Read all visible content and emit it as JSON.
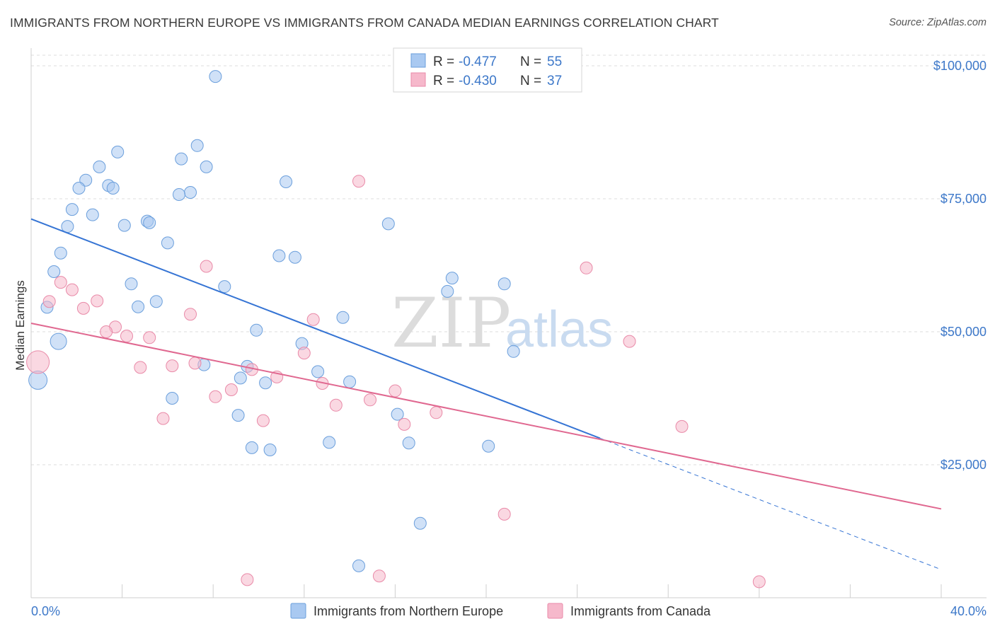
{
  "title": "IMMIGRANTS FROM NORTHERN EUROPE VS IMMIGRANTS FROM CANADA MEDIAN EARNINGS CORRELATION CHART",
  "source": "Source: ZipAtlas.com",
  "watermark": {
    "zip": "ZIP",
    "atlas": "atlas"
  },
  "legend": {
    "r_label": "R =",
    "n_label": "N =",
    "rows": [
      {
        "r": "-0.477",
        "n": "55",
        "color": "#a9c9f1"
      },
      {
        "r": "-0.430",
        "n": "37",
        "color": "#f6b8cb"
      }
    ]
  },
  "chart_data": {
    "type": "scatter",
    "title": "IMMIGRANTS FROM NORTHERN EUROPE VS IMMIGRANTS FROM CANADA MEDIAN EARNINGS CORRELATION CHART",
    "xlabel": "",
    "ylabel": "Median Earnings",
    "xlim": [
      0,
      40
    ],
    "ylim": [
      0,
      102000
    ],
    "x_tick_labels": [
      "0.0%",
      "40.0%"
    ],
    "y_ticks": [
      25000,
      50000,
      75000,
      100000
    ],
    "y_tick_labels": [
      "$25,000",
      "$50,000",
      "$75,000",
      "$100,000"
    ],
    "grid": true,
    "legend_position": "top-center",
    "series": [
      {
        "name": "Immigrants from Northern Europe",
        "color": "#a9c9f1",
        "stroke": "#6b9fdc",
        "trend_color": "#3574d4",
        "trend": {
          "x0": 0,
          "y0": 71200,
          "x1": 25,
          "y1": 30000,
          "x_dash_end": 40,
          "y_dash_end": 5300
        },
        "points": [
          [
            8.1,
            98000
          ],
          [
            3.8,
            83800
          ],
          [
            7.3,
            85000
          ],
          [
            6.6,
            82500
          ],
          [
            7.7,
            81000
          ],
          [
            3.0,
            81000
          ],
          [
            2.4,
            78500
          ],
          [
            11.2,
            78200
          ],
          [
            3.4,
            77500
          ],
          [
            3.6,
            77000
          ],
          [
            2.1,
            77000
          ],
          [
            7.0,
            76200
          ],
          [
            6.5,
            75800
          ],
          [
            1.8,
            73000
          ],
          [
            2.7,
            72000
          ],
          [
            4.1,
            70000
          ],
          [
            5.1,
            70800
          ],
          [
            5.2,
            70500
          ],
          [
            15.7,
            70300
          ],
          [
            1.6,
            69800
          ],
          [
            6.0,
            66700
          ],
          [
            1.3,
            64800
          ],
          [
            10.9,
            64300
          ],
          [
            11.6,
            64000
          ],
          [
            1.0,
            61300
          ],
          [
            18.5,
            60100
          ],
          [
            4.4,
            59000
          ],
          [
            20.8,
            59000
          ],
          [
            8.5,
            58500
          ],
          [
            18.3,
            57600
          ],
          [
            5.5,
            55700
          ],
          [
            0.7,
            54600
          ],
          [
            4.7,
            54700
          ],
          [
            13.7,
            52700
          ],
          [
            9.9,
            50300
          ],
          [
            1.2,
            48200
          ],
          [
            11.9,
            47800
          ],
          [
            21.2,
            46300
          ],
          [
            7.6,
            43800
          ],
          [
            9.5,
            43500
          ],
          [
            12.6,
            42500
          ],
          [
            9.2,
            41300
          ],
          [
            10.3,
            40400
          ],
          [
            14.0,
            40600
          ],
          [
            0.3,
            40900
          ],
          [
            6.2,
            37500
          ],
          [
            16.1,
            34500
          ],
          [
            9.1,
            34300
          ],
          [
            13.1,
            29200
          ],
          [
            16.6,
            29100
          ],
          [
            20.1,
            28500
          ],
          [
            9.7,
            28200
          ],
          [
            10.5,
            27800
          ],
          [
            17.1,
            14000
          ],
          [
            14.4,
            6000
          ]
        ]
      },
      {
        "name": "Immigrants from Canada",
        "color": "#f6b8cb",
        "stroke": "#e98aa8",
        "trend_color": "#e06890",
        "trend": {
          "x0": 0,
          "y0": 51600,
          "x1": 40,
          "y1": 16700
        },
        "points": [
          [
            14.4,
            78300
          ],
          [
            7.7,
            62300
          ],
          [
            24.4,
            62000
          ],
          [
            1.3,
            59300
          ],
          [
            1.8,
            57900
          ],
          [
            0.8,
            55700
          ],
          [
            2.9,
            55800
          ],
          [
            2.3,
            54400
          ],
          [
            7.0,
            53300
          ],
          [
            12.4,
            52300
          ],
          [
            3.7,
            50900
          ],
          [
            3.3,
            50000
          ],
          [
            4.2,
            49200
          ],
          [
            5.2,
            48900
          ],
          [
            26.3,
            48200
          ],
          [
            12.0,
            46000
          ],
          [
            0.3,
            44300
          ],
          [
            7.2,
            44100
          ],
          [
            6.2,
            43600
          ],
          [
            4.8,
            43300
          ],
          [
            9.7,
            42900
          ],
          [
            10.8,
            41500
          ],
          [
            12.8,
            40300
          ],
          [
            8.8,
            39100
          ],
          [
            16.0,
            38900
          ],
          [
            8.1,
            37800
          ],
          [
            14.9,
            37200
          ],
          [
            13.4,
            36200
          ],
          [
            17.8,
            34800
          ],
          [
            5.8,
            33700
          ],
          [
            10.2,
            33300
          ],
          [
            16.4,
            32600
          ],
          [
            28.6,
            32200
          ],
          [
            20.8,
            15700
          ],
          [
            9.5,
            3400
          ],
          [
            15.3,
            4100
          ],
          [
            32.0,
            3000
          ]
        ]
      }
    ]
  },
  "bottom_legend": [
    {
      "label": "Immigrants from Northern Europe",
      "color": "#a9c9f1",
      "stroke": "#6b9fdc"
    },
    {
      "label": "Immigrants from Canada",
      "color": "#f6b8cb",
      "stroke": "#e98aa8"
    }
  ]
}
